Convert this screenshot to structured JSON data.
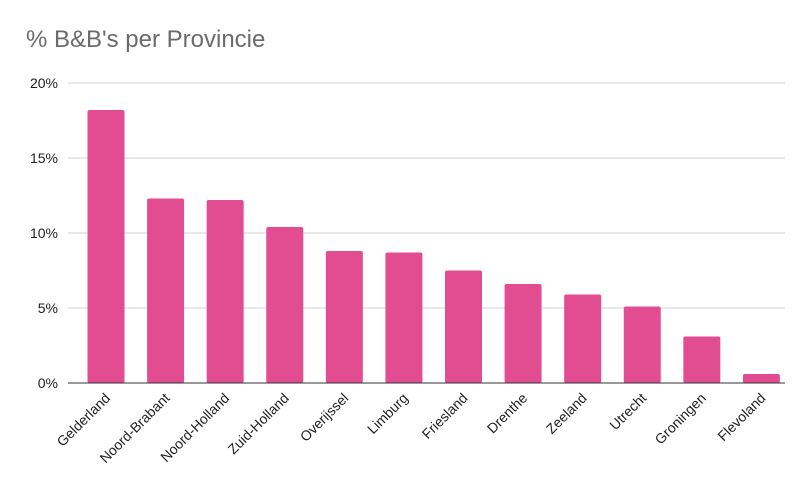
{
  "chart_data": {
    "type": "bar",
    "title": "% B&B's per Provincie",
    "xlabel": "",
    "ylabel": "",
    "categories": [
      "Gelderland",
      "Noord-Brabant",
      "Noord-Holland",
      "Zuid-Holland",
      "Overijssel",
      "Limburg",
      "Friesland",
      "Drenthe",
      "Zeeland",
      "Utrecht",
      "Groningen",
      "Flevoland"
    ],
    "values": [
      18.2,
      12.3,
      12.2,
      10.4,
      8.8,
      8.7,
      7.5,
      6.6,
      5.9,
      5.1,
      3.1,
      0.6
    ],
    "ylim": [
      0,
      20
    ],
    "yticks": [
      0,
      5,
      10,
      15,
      20
    ],
    "ytick_labels": [
      "0%",
      "5%",
      "10%",
      "15%",
      "20%"
    ],
    "grid": true,
    "legend": "none",
    "bar_color": "#e24d92",
    "grid_color": "#d0d0d0"
  }
}
